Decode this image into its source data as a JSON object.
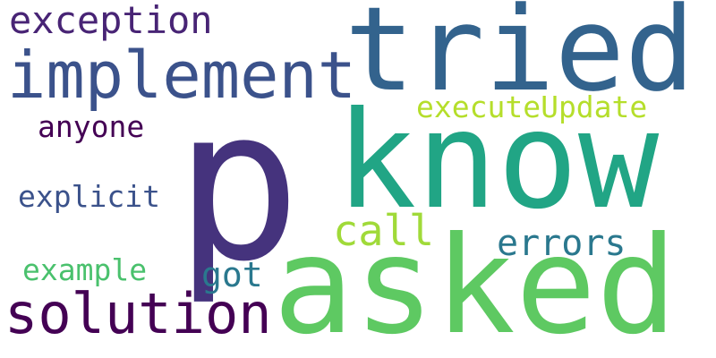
{
  "words": [
    {
      "text": "p",
      "color": "#45337d"
    },
    {
      "text": "tried",
      "color": "#33638d"
    },
    {
      "text": "know",
      "color": "#21a585"
    },
    {
      "text": "asked",
      "color": "#5ec962"
    },
    {
      "text": "implement",
      "color": "#3b528b"
    },
    {
      "text": "exception",
      "color": "#482475"
    },
    {
      "text": "solution",
      "color": "#440154"
    },
    {
      "text": "executeUpdate",
      "color": "#b5de2b"
    },
    {
      "text": "call",
      "color": "#a0da39"
    },
    {
      "text": "errors",
      "color": "#2a788e"
    },
    {
      "text": "anyone",
      "color": "#440154"
    },
    {
      "text": "explicit",
      "color": "#3b528b"
    },
    {
      "text": "example",
      "color": "#4ac16d"
    },
    {
      "text": "got",
      "color": "#2a788e"
    }
  ]
}
